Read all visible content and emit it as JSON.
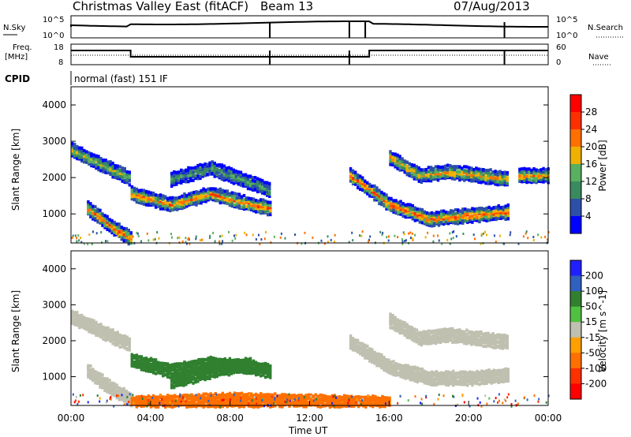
{
  "header": {
    "station": "Christmas Valley East (fitACF)",
    "beam": "Beam 13",
    "date": "07/Aug/2013"
  },
  "status_panels": {
    "nsky_label": "N.Sky",
    "nsearch_label": "N.Search",
    "freq_label_line1": "Freq.",
    "freq_label_line2": "[MHz]",
    "nave_label": "Nave",
    "cpid_label": "CPID",
    "cpid_text": "normal (fast) 151 IF",
    "noise_ticks": [
      "10^5",
      "10^0"
    ],
    "noise_ticks_right": [
      "10^5",
      "10^0"
    ],
    "freq_ticks": [
      "18",
      "8"
    ],
    "nave_ticks": [
      "60",
      "0"
    ]
  },
  "colors": {
    "power": [
      "#0000ff",
      "#2c50a8",
      "#3a8a60",
      "#58b060",
      "#f0b000",
      "#ff7000",
      "#ff3000",
      "#ff0000"
    ],
    "velocity": [
      "#2020ff",
      "#3060c0",
      "#308030",
      "#50c040",
      "#c0c0b0",
      "#ffa000",
      "#ff7000",
      "#ff3000",
      "#ff0000"
    ],
    "ground_scatter": "#b8b8b0",
    "noise_line": "#000000"
  },
  "chart_data": [
    {
      "type": "heatmap",
      "name": "power",
      "ylabel": "Slant Range [km]",
      "yticks": [
        "1000",
        "2000",
        "3000",
        "4000"
      ],
      "ylim": [
        200,
        4500
      ],
      "xlim_hours": [
        0,
        24
      ],
      "colorbar_label": "Power [dB]",
      "colorbar_ticks": [
        "4",
        "8",
        "12",
        "16",
        "20",
        "24",
        "28"
      ],
      "echo_bands": [
        {
          "t": [
            0.0,
            1.5,
            3.0
          ],
          "range": [
            2800,
            2400,
            2000
          ],
          "level": 16
        },
        {
          "t": [
            0.8,
            2.0,
            3.0
          ],
          "range": [
            1200,
            700,
            350
          ],
          "level": 24
        },
        {
          "t": [
            3.0,
            5.0,
            7.0,
            9.0,
            10.0
          ],
          "range": [
            1600,
            1300,
            1600,
            1300,
            1200
          ],
          "level": 22
        },
        {
          "t": [
            5.0,
            7.0,
            9.0,
            10.0
          ],
          "range": [
            2000,
            2300,
            1900,
            1700
          ],
          "level": 12
        },
        {
          "t": [
            14.0,
            16.0,
            18.0,
            20.0,
            22.0
          ],
          "range": [
            2100,
            1300,
            900,
            1000,
            1100
          ],
          "level": 24
        },
        {
          "t": [
            16.0,
            17.5,
            19.0,
            20.5,
            22.0
          ],
          "range": [
            2600,
            2100,
            2200,
            2100,
            2000
          ],
          "level": 20
        },
        {
          "t": [
            22.5,
            24.0
          ],
          "range": [
            2100,
            2100
          ],
          "level": 22
        }
      ]
    },
    {
      "type": "heatmap",
      "name": "velocity",
      "ylabel": "Slant Range [km]",
      "xlabel": "Time UT",
      "xticks": [
        "00:00",
        "04:00",
        "08:00",
        "12:00",
        "16:00",
        "20:00",
        "00:00"
      ],
      "yticks": [
        "1000",
        "2000",
        "3000",
        "4000"
      ],
      "ylim": [
        200,
        4500
      ],
      "xlim_hours": [
        0,
        24
      ],
      "colorbar_label": "Velocity [m s^-1]",
      "colorbar_ticks": [
        "200",
        "100",
        "50",
        "15",
        "-15",
        "-50",
        "-100",
        "-200"
      ],
      "echo_bands": [
        {
          "t": [
            0.0,
            1.5,
            3.0
          ],
          "range": [
            2700,
            2300,
            1900
          ],
          "level": 0
        },
        {
          "t": [
            0.8,
            2.0,
            3.0
          ],
          "range": [
            1200,
            700,
            400
          ],
          "level": 0
        },
        {
          "t": [
            3.0,
            5.0,
            7.0,
            9.0,
            10.0
          ],
          "range": [
            1500,
            1200,
            1400,
            1300,
            1200
          ],
          "level": 60
        },
        {
          "t": [
            5.0,
            7.0,
            9.0
          ],
          "range": [
            900,
            1200,
            1400
          ],
          "level": 60
        },
        {
          "t": [
            14.0,
            16.0,
            18.0,
            20.0,
            22.0
          ],
          "range": [
            2000,
            1300,
            1000,
            1000,
            1100
          ],
          "level": 0
        },
        {
          "t": [
            16.0,
            17.5,
            19.0,
            20.5,
            22.0
          ],
          "range": [
            2600,
            2100,
            2200,
            2100,
            2000
          ],
          "level": 0
        },
        {
          "t": [
            3.0,
            8.0,
            12.0,
            16.0
          ],
          "range": [
            300,
            400,
            350,
            300
          ],
          "level": -80
        }
      ]
    }
  ]
}
